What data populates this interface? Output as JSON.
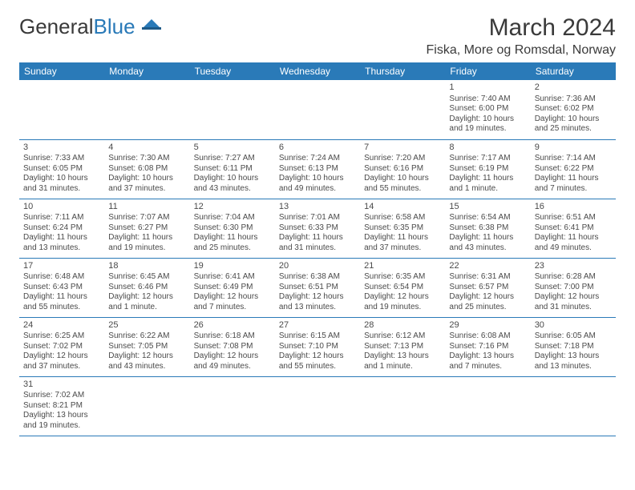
{
  "logo": {
    "general": "General",
    "blue": "Blue"
  },
  "title": "March 2024",
  "location": "Fiska, More og Romsdal, Norway",
  "columns": [
    "Sunday",
    "Monday",
    "Tuesday",
    "Wednesday",
    "Thursday",
    "Friday",
    "Saturday"
  ],
  "colors": {
    "header_bg": "#2a7ab8",
    "header_text": "#ffffff",
    "border": "#2a7ab8",
    "text": "#4a4a4a",
    "background": "#ffffff"
  },
  "weeks": [
    [
      null,
      null,
      null,
      null,
      null,
      {
        "num": "1",
        "sunrise": "Sunrise: 7:40 AM",
        "sunset": "Sunset: 6:00 PM",
        "daylight1": "Daylight: 10 hours",
        "daylight2": "and 19 minutes."
      },
      {
        "num": "2",
        "sunrise": "Sunrise: 7:36 AM",
        "sunset": "Sunset: 6:02 PM",
        "daylight1": "Daylight: 10 hours",
        "daylight2": "and 25 minutes."
      }
    ],
    [
      {
        "num": "3",
        "sunrise": "Sunrise: 7:33 AM",
        "sunset": "Sunset: 6:05 PM",
        "daylight1": "Daylight: 10 hours",
        "daylight2": "and 31 minutes."
      },
      {
        "num": "4",
        "sunrise": "Sunrise: 7:30 AM",
        "sunset": "Sunset: 6:08 PM",
        "daylight1": "Daylight: 10 hours",
        "daylight2": "and 37 minutes."
      },
      {
        "num": "5",
        "sunrise": "Sunrise: 7:27 AM",
        "sunset": "Sunset: 6:11 PM",
        "daylight1": "Daylight: 10 hours",
        "daylight2": "and 43 minutes."
      },
      {
        "num": "6",
        "sunrise": "Sunrise: 7:24 AM",
        "sunset": "Sunset: 6:13 PM",
        "daylight1": "Daylight: 10 hours",
        "daylight2": "and 49 minutes."
      },
      {
        "num": "7",
        "sunrise": "Sunrise: 7:20 AM",
        "sunset": "Sunset: 6:16 PM",
        "daylight1": "Daylight: 10 hours",
        "daylight2": "and 55 minutes."
      },
      {
        "num": "8",
        "sunrise": "Sunrise: 7:17 AM",
        "sunset": "Sunset: 6:19 PM",
        "daylight1": "Daylight: 11 hours",
        "daylight2": "and 1 minute."
      },
      {
        "num": "9",
        "sunrise": "Sunrise: 7:14 AM",
        "sunset": "Sunset: 6:22 PM",
        "daylight1": "Daylight: 11 hours",
        "daylight2": "and 7 minutes."
      }
    ],
    [
      {
        "num": "10",
        "sunrise": "Sunrise: 7:11 AM",
        "sunset": "Sunset: 6:24 PM",
        "daylight1": "Daylight: 11 hours",
        "daylight2": "and 13 minutes."
      },
      {
        "num": "11",
        "sunrise": "Sunrise: 7:07 AM",
        "sunset": "Sunset: 6:27 PM",
        "daylight1": "Daylight: 11 hours",
        "daylight2": "and 19 minutes."
      },
      {
        "num": "12",
        "sunrise": "Sunrise: 7:04 AM",
        "sunset": "Sunset: 6:30 PM",
        "daylight1": "Daylight: 11 hours",
        "daylight2": "and 25 minutes."
      },
      {
        "num": "13",
        "sunrise": "Sunrise: 7:01 AM",
        "sunset": "Sunset: 6:33 PM",
        "daylight1": "Daylight: 11 hours",
        "daylight2": "and 31 minutes."
      },
      {
        "num": "14",
        "sunrise": "Sunrise: 6:58 AM",
        "sunset": "Sunset: 6:35 PM",
        "daylight1": "Daylight: 11 hours",
        "daylight2": "and 37 minutes."
      },
      {
        "num": "15",
        "sunrise": "Sunrise: 6:54 AM",
        "sunset": "Sunset: 6:38 PM",
        "daylight1": "Daylight: 11 hours",
        "daylight2": "and 43 minutes."
      },
      {
        "num": "16",
        "sunrise": "Sunrise: 6:51 AM",
        "sunset": "Sunset: 6:41 PM",
        "daylight1": "Daylight: 11 hours",
        "daylight2": "and 49 minutes."
      }
    ],
    [
      {
        "num": "17",
        "sunrise": "Sunrise: 6:48 AM",
        "sunset": "Sunset: 6:43 PM",
        "daylight1": "Daylight: 11 hours",
        "daylight2": "and 55 minutes."
      },
      {
        "num": "18",
        "sunrise": "Sunrise: 6:45 AM",
        "sunset": "Sunset: 6:46 PM",
        "daylight1": "Daylight: 12 hours",
        "daylight2": "and 1 minute."
      },
      {
        "num": "19",
        "sunrise": "Sunrise: 6:41 AM",
        "sunset": "Sunset: 6:49 PM",
        "daylight1": "Daylight: 12 hours",
        "daylight2": "and 7 minutes."
      },
      {
        "num": "20",
        "sunrise": "Sunrise: 6:38 AM",
        "sunset": "Sunset: 6:51 PM",
        "daylight1": "Daylight: 12 hours",
        "daylight2": "and 13 minutes."
      },
      {
        "num": "21",
        "sunrise": "Sunrise: 6:35 AM",
        "sunset": "Sunset: 6:54 PM",
        "daylight1": "Daylight: 12 hours",
        "daylight2": "and 19 minutes."
      },
      {
        "num": "22",
        "sunrise": "Sunrise: 6:31 AM",
        "sunset": "Sunset: 6:57 PM",
        "daylight1": "Daylight: 12 hours",
        "daylight2": "and 25 minutes."
      },
      {
        "num": "23",
        "sunrise": "Sunrise: 6:28 AM",
        "sunset": "Sunset: 7:00 PM",
        "daylight1": "Daylight: 12 hours",
        "daylight2": "and 31 minutes."
      }
    ],
    [
      {
        "num": "24",
        "sunrise": "Sunrise: 6:25 AM",
        "sunset": "Sunset: 7:02 PM",
        "daylight1": "Daylight: 12 hours",
        "daylight2": "and 37 minutes."
      },
      {
        "num": "25",
        "sunrise": "Sunrise: 6:22 AM",
        "sunset": "Sunset: 7:05 PM",
        "daylight1": "Daylight: 12 hours",
        "daylight2": "and 43 minutes."
      },
      {
        "num": "26",
        "sunrise": "Sunrise: 6:18 AM",
        "sunset": "Sunset: 7:08 PM",
        "daylight1": "Daylight: 12 hours",
        "daylight2": "and 49 minutes."
      },
      {
        "num": "27",
        "sunrise": "Sunrise: 6:15 AM",
        "sunset": "Sunset: 7:10 PM",
        "daylight1": "Daylight: 12 hours",
        "daylight2": "and 55 minutes."
      },
      {
        "num": "28",
        "sunrise": "Sunrise: 6:12 AM",
        "sunset": "Sunset: 7:13 PM",
        "daylight1": "Daylight: 13 hours",
        "daylight2": "and 1 minute."
      },
      {
        "num": "29",
        "sunrise": "Sunrise: 6:08 AM",
        "sunset": "Sunset: 7:16 PM",
        "daylight1": "Daylight: 13 hours",
        "daylight2": "and 7 minutes."
      },
      {
        "num": "30",
        "sunrise": "Sunrise: 6:05 AM",
        "sunset": "Sunset: 7:18 PM",
        "daylight1": "Daylight: 13 hours",
        "daylight2": "and 13 minutes."
      }
    ],
    [
      {
        "num": "31",
        "sunrise": "Sunrise: 7:02 AM",
        "sunset": "Sunset: 8:21 PM",
        "daylight1": "Daylight: 13 hours",
        "daylight2": "and 19 minutes."
      },
      null,
      null,
      null,
      null,
      null,
      null
    ]
  ]
}
